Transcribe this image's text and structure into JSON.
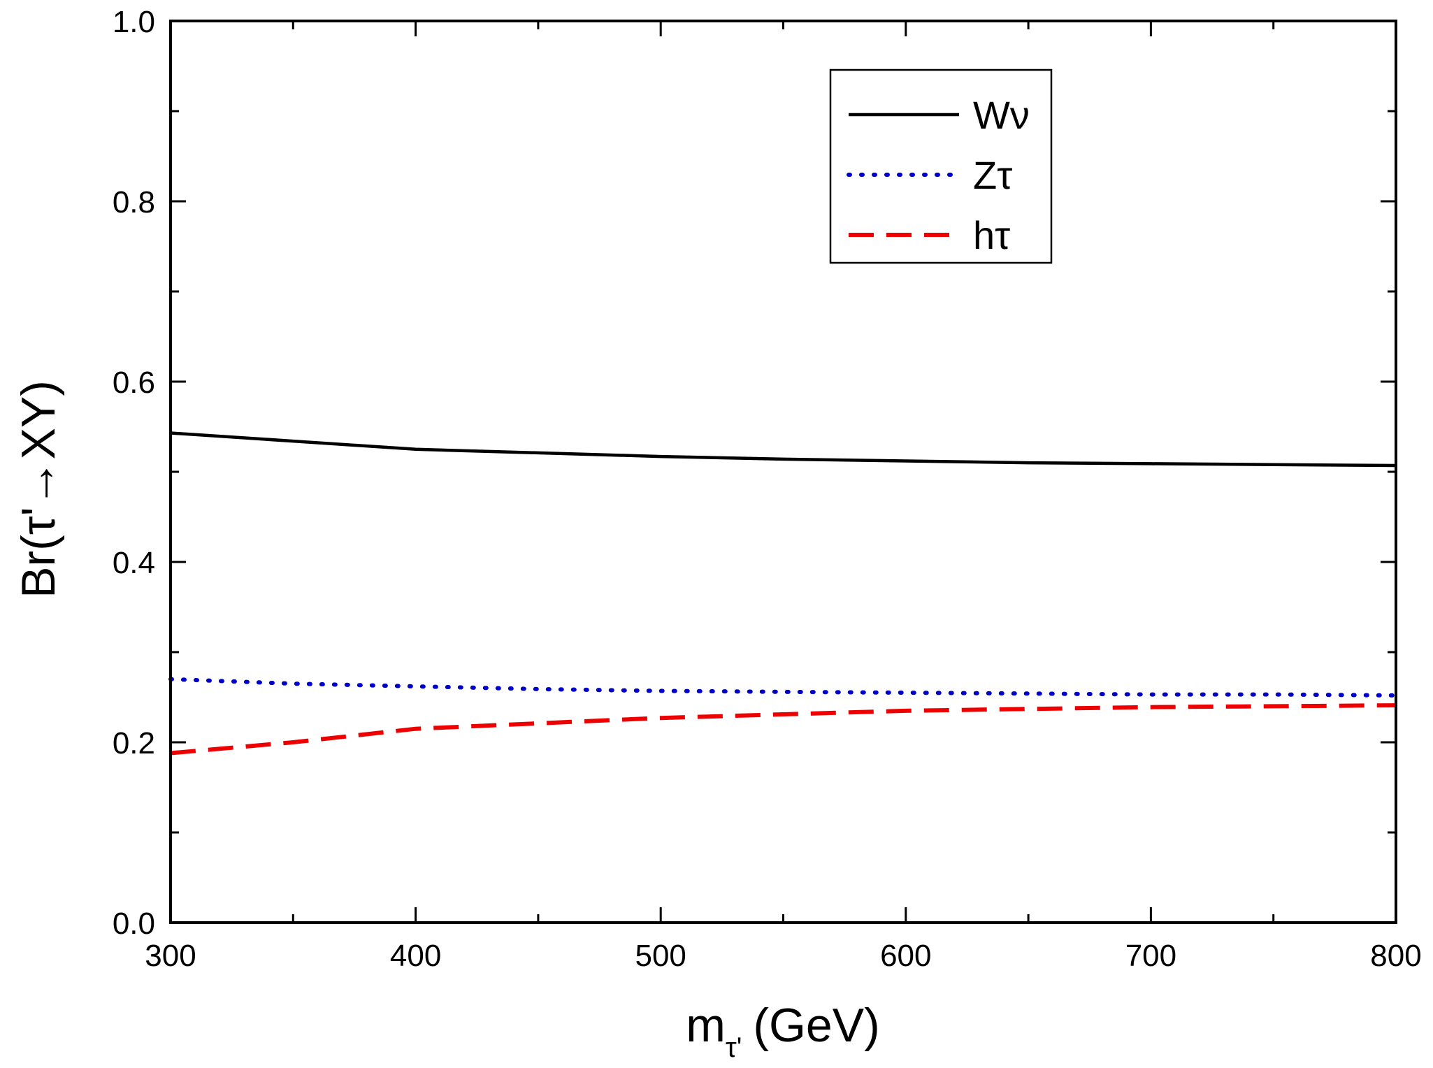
{
  "chart_data": {
    "type": "line",
    "xlabel_main": "m",
    "xlabel_sub": "τ'",
    "xlabel_unit": "(GeV)",
    "ylabel": "Br(τ'→XY)",
    "xlim": [
      300,
      800
    ],
    "ylim": [
      0.0,
      1.0
    ],
    "x_ticks": [
      300,
      400,
      500,
      600,
      700,
      800
    ],
    "x_tick_labels": [
      "300",
      "400",
      "500",
      "600",
      "700",
      "800"
    ],
    "y_ticks": [
      0.0,
      0.2,
      0.4,
      0.6,
      0.8,
      1.0
    ],
    "y_tick_labels": [
      "0.0",
      "0.2",
      "0.4",
      "0.6",
      "0.8",
      "1.0"
    ],
    "grid": false,
    "legend_position": "top-right",
    "series": [
      {
        "name": "Wν",
        "color": "#000000",
        "style": "solid",
        "x": [
          300,
          350,
          400,
          450,
          500,
          550,
          600,
          650,
          700,
          750,
          800
        ],
        "y": [
          0.543,
          0.534,
          0.525,
          0.521,
          0.517,
          0.514,
          0.512,
          0.51,
          0.509,
          0.508,
          0.507
        ]
      },
      {
        "name": "Zτ",
        "color": "#0000cc",
        "style": "dotted",
        "x": [
          300,
          350,
          400,
          450,
          500,
          550,
          600,
          650,
          700,
          750,
          800
        ],
        "y": [
          0.27,
          0.265,
          0.262,
          0.259,
          0.257,
          0.256,
          0.255,
          0.254,
          0.253,
          0.253,
          0.252
        ]
      },
      {
        "name": "hτ",
        "color": "#ee0000",
        "style": "dashed",
        "x": [
          300,
          350,
          400,
          450,
          500,
          550,
          600,
          650,
          700,
          750,
          800
        ],
        "y": [
          0.188,
          0.2,
          0.215,
          0.221,
          0.227,
          0.231,
          0.235,
          0.237,
          0.239,
          0.24,
          0.241
        ]
      }
    ]
  }
}
